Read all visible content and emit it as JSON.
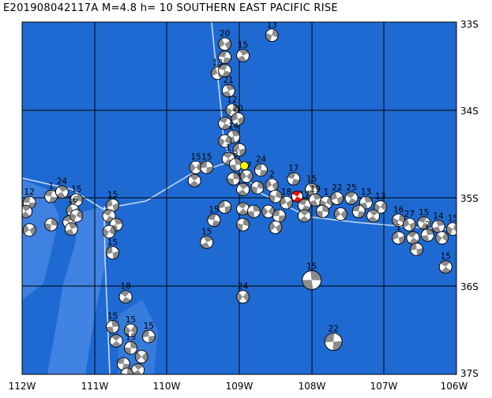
{
  "title": "E201908042117A  M=4.8  h= 10  SOUTHERN EAST PACIFIC RISE",
  "lon_labels": [
    "112W",
    "111W",
    "110W",
    "109W",
    "108W",
    "107W",
    "106W"
  ],
  "lat_labels": [
    "33S",
    "34S",
    "35S",
    "36S",
    "37S"
  ],
  "map_extent": {
    "lon": [
      -112,
      -106
    ],
    "lat": [
      -37,
      -33
    ]
  },
  "colors": {
    "ocean": "#1e6ad2",
    "shallow": "#4a8ae6",
    "plate_boundary": "#c8d8f2",
    "grid": "#000000",
    "event": "#ff0000",
    "epicenter_marker": "#ffff00",
    "compression": "#8c8c8c"
  },
  "current_event": {
    "lon": -108.2,
    "lat": -34.98
  },
  "yellow_marker": {
    "lon": -108.93,
    "lat": -34.63
  },
  "events": [
    {
      "lon": -111.9,
      "lat": -35.05,
      "depth": "12"
    },
    {
      "lon": -111.95,
      "lat": -35.15,
      "depth": ""
    },
    {
      "lon": -111.6,
      "lat": -35.3,
      "depth": ""
    },
    {
      "lon": -111.9,
      "lat": -35.36,
      "depth": ""
    },
    {
      "lon": -111.6,
      "lat": -34.98,
      "depth": "1"
    },
    {
      "lon": -111.45,
      "lat": -34.93,
      "depth": "24"
    },
    {
      "lon": -111.25,
      "lat": -35.02,
      "depth": "15"
    },
    {
      "lon": -111.3,
      "lat": -35.14,
      "depth": "16"
    },
    {
      "lon": -111.35,
      "lat": -35.27,
      "depth": ""
    },
    {
      "lon": -111.32,
      "lat": -35.35,
      "depth": ""
    },
    {
      "lon": -111.25,
      "lat": -35.2,
      "depth": ""
    },
    {
      "lon": -110.75,
      "lat": -35.08,
      "depth": "15"
    },
    {
      "lon": -110.8,
      "lat": -35.2,
      "depth": ""
    },
    {
      "lon": -110.7,
      "lat": -35.3,
      "depth": ""
    },
    {
      "lon": -110.8,
      "lat": -35.38,
      "depth": ""
    },
    {
      "lon": -110.75,
      "lat": -35.62,
      "depth": "15"
    },
    {
      "lon": -110.57,
      "lat": -36.12,
      "depth": "18"
    },
    {
      "lon": -110.75,
      "lat": -36.46,
      "depth": "15"
    },
    {
      "lon": -110.5,
      "lat": -36.5,
      "depth": "15"
    },
    {
      "lon": -110.25,
      "lat": -36.57,
      "depth": "15"
    },
    {
      "lon": -110.7,
      "lat": -36.62,
      "depth": ""
    },
    {
      "lon": -110.5,
      "lat": -36.7,
      "depth": "15"
    },
    {
      "lon": -110.35,
      "lat": -36.8,
      "depth": ""
    },
    {
      "lon": -110.6,
      "lat": -36.88,
      "depth": ""
    },
    {
      "lon": -110.4,
      "lat": -36.95,
      "depth": ""
    },
    {
      "lon": -110.55,
      "lat": -37.0,
      "depth": ""
    },
    {
      "lon": -109.2,
      "lat": -33.25,
      "depth": "20"
    },
    {
      "lon": -109.2,
      "lat": -33.4,
      "depth": ""
    },
    {
      "lon": -108.95,
      "lat": -33.38,
      "depth": "15"
    },
    {
      "lon": -108.55,
      "lat": -33.15,
      "depth": "13"
    },
    {
      "lon": -109.3,
      "lat": -33.58,
      "depth": "13"
    },
    {
      "lon": -109.2,
      "lat": -33.55,
      "depth": ""
    },
    {
      "lon": -109.15,
      "lat": -33.78,
      "depth": "21"
    },
    {
      "lon": -109.1,
      "lat": -34.0,
      "depth": "12"
    },
    {
      "lon": -109.02,
      "lat": -34.1,
      "depth": "20"
    },
    {
      "lon": -109.2,
      "lat": -34.15,
      "depth": ""
    },
    {
      "lon": -109.08,
      "lat": -34.3,
      "depth": "14"
    },
    {
      "lon": -109.2,
      "lat": -34.35,
      "depth": ""
    },
    {
      "lon": -109.0,
      "lat": -34.45,
      "depth": ""
    },
    {
      "lon": -109.15,
      "lat": -34.55,
      "depth": "1"
    },
    {
      "lon": -109.05,
      "lat": -34.62,
      "depth": "3"
    },
    {
      "lon": -109.6,
      "lat": -34.65,
      "depth": "15"
    },
    {
      "lon": -109.45,
      "lat": -34.65,
      "depth": "15"
    },
    {
      "lon": -109.62,
      "lat": -34.8,
      "depth": ""
    },
    {
      "lon": -109.08,
      "lat": -34.78,
      "depth": ""
    },
    {
      "lon": -108.9,
      "lat": -34.75,
      "depth": "17"
    },
    {
      "lon": -108.7,
      "lat": -34.68,
      "depth": "24"
    },
    {
      "lon": -108.95,
      "lat": -34.9,
      "depth": ""
    },
    {
      "lon": -108.75,
      "lat": -34.88,
      "depth": ""
    },
    {
      "lon": -108.55,
      "lat": -34.85,
      "depth": "2"
    },
    {
      "lon": -108.25,
      "lat": -34.78,
      "depth": "17"
    },
    {
      "lon": -108.0,
      "lat": -34.9,
      "depth": "15"
    },
    {
      "lon": -108.5,
      "lat": -34.98,
      "depth": ""
    },
    {
      "lon": -108.35,
      "lat": -35.05,
      "depth": "18"
    },
    {
      "lon": -108.1,
      "lat": -35.08,
      "depth": "17"
    },
    {
      "lon": -107.95,
      "lat": -35.02,
      "depth": "19"
    },
    {
      "lon": -107.8,
      "lat": -35.05,
      "depth": "1"
    },
    {
      "lon": -107.65,
      "lat": -35.0,
      "depth": "22"
    },
    {
      "lon": -107.45,
      "lat": -35.0,
      "depth": "25"
    },
    {
      "lon": -107.25,
      "lat": -35.05,
      "depth": "13"
    },
    {
      "lon": -107.05,
      "lat": -35.1,
      "depth": "13"
    },
    {
      "lon": -109.2,
      "lat": -35.1,
      "depth": ""
    },
    {
      "lon": -108.95,
      "lat": -35.12,
      "depth": ""
    },
    {
      "lon": -108.8,
      "lat": -35.15,
      "depth": ""
    },
    {
      "lon": -108.6,
      "lat": -35.15,
      "depth": ""
    },
    {
      "lon": -108.45,
      "lat": -35.2,
      "depth": ""
    },
    {
      "lon": -108.1,
      "lat": -35.2,
      "depth": ""
    },
    {
      "lon": -107.85,
      "lat": -35.15,
      "depth": ""
    },
    {
      "lon": -107.6,
      "lat": -35.18,
      "depth": ""
    },
    {
      "lon": -107.35,
      "lat": -35.15,
      "depth": ""
    },
    {
      "lon": -107.15,
      "lat": -35.2,
      "depth": ""
    },
    {
      "lon": -108.95,
      "lat": -35.3,
      "depth": ""
    },
    {
      "lon": -108.5,
      "lat": -35.33,
      "depth": ""
    },
    {
      "lon": -109.35,
      "lat": -35.25,
      "depth": "15"
    },
    {
      "lon": -109.45,
      "lat": -35.5,
      "depth": "15"
    },
    {
      "lon": -106.8,
      "lat": -35.25,
      "depth": "16"
    },
    {
      "lon": -106.65,
      "lat": -35.3,
      "depth": "27"
    },
    {
      "lon": -106.45,
      "lat": -35.28,
      "depth": "15"
    },
    {
      "lon": -106.25,
      "lat": -35.32,
      "depth": "14"
    },
    {
      "lon": -106.05,
      "lat": -35.35,
      "depth": "15"
    },
    {
      "lon": -106.8,
      "lat": -35.45,
      "depth": "1"
    },
    {
      "lon": -106.6,
      "lat": -35.45,
      "depth": ""
    },
    {
      "lon": -106.4,
      "lat": -35.42,
      "depth": "2"
    },
    {
      "lon": -106.2,
      "lat": -35.45,
      "depth": ""
    },
    {
      "lon": -106.55,
      "lat": -35.58,
      "depth": ""
    },
    {
      "lon": -106.15,
      "lat": -35.78,
      "depth": "15"
    },
    {
      "lon": -108.0,
      "lat": -35.93,
      "depth": "15"
    },
    {
      "lon": -108.95,
      "lat": -36.12,
      "depth": "24"
    },
    {
      "lon": -107.7,
      "lat": -36.63,
      "depth": "22"
    }
  ]
}
